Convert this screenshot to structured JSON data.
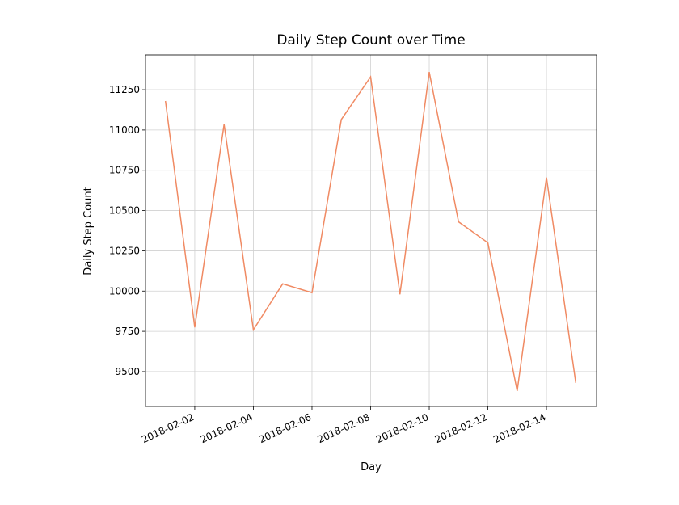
{
  "chart_data": {
    "type": "line",
    "title": "Daily Step Count over Time",
    "xlabel": "Day",
    "ylabel": "Daily Step Count",
    "x": [
      "2018-02-01",
      "2018-02-02",
      "2018-02-03",
      "2018-02-04",
      "2018-02-05",
      "2018-02-06",
      "2018-02-07",
      "2018-02-08",
      "2018-02-09",
      "2018-02-10",
      "2018-02-11",
      "2018-02-12",
      "2018-02-13",
      "2018-02-14",
      "2018-02-15"
    ],
    "series": [
      {
        "name": "Daily Step Count",
        "color": "#f08a63",
        "values": [
          11180,
          9775,
          11035,
          9760,
          10045,
          9990,
          11065,
          11330,
          9980,
          11360,
          10430,
          10300,
          9380,
          10705,
          9430
        ]
      }
    ],
    "xlim": [
      "2018-01-31T07:40",
      "2018-02-15T17:00"
    ],
    "xticks": [
      "2018-02-02",
      "2018-02-04",
      "2018-02-06",
      "2018-02-08",
      "2018-02-10",
      "2018-02-12",
      "2018-02-14"
    ],
    "ylim": [
      9284,
      11466
    ],
    "yticks": [
      9500,
      9750,
      10000,
      10250,
      10500,
      10750,
      11000,
      11250
    ],
    "grid": true
  }
}
